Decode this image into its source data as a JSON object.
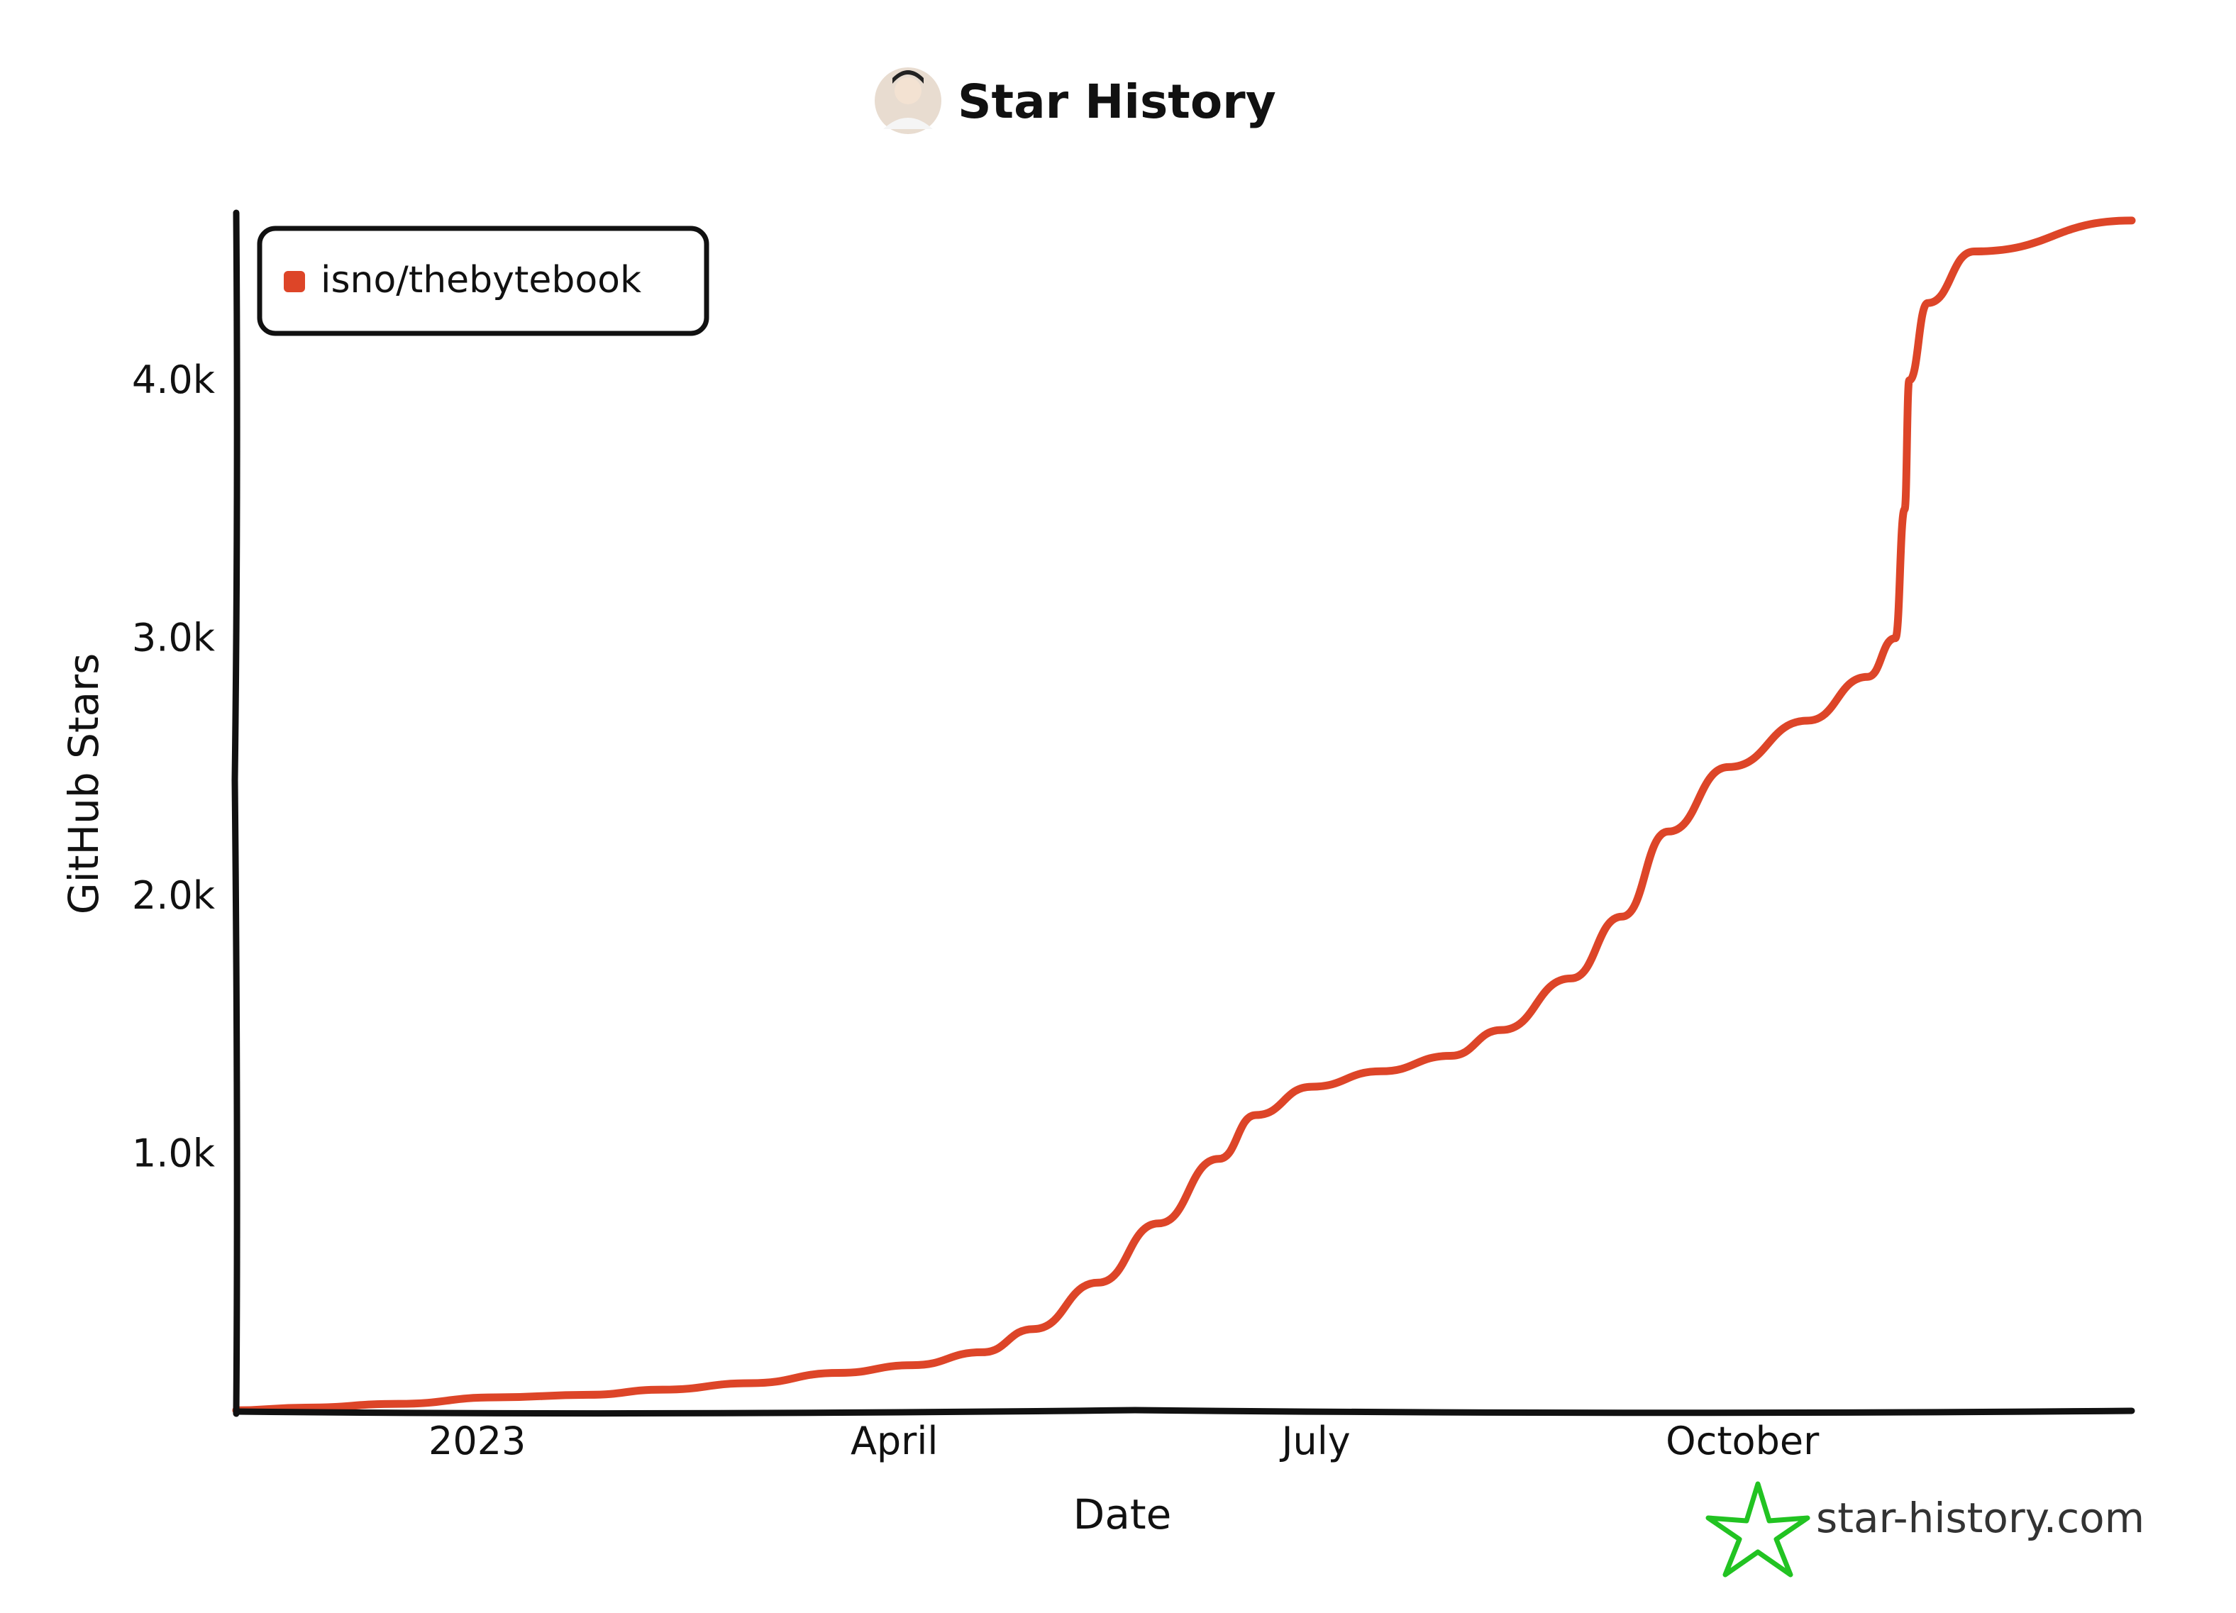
{
  "title": "Star History",
  "avatar_icon": "user-avatar-photo",
  "legend": {
    "entries": [
      "isno/thebytebook"
    ]
  },
  "watermark": {
    "text": "star-history.com",
    "icon": "star-icon",
    "color": "#22c322"
  },
  "colors": {
    "series": "#dd4528",
    "axis": "#111111"
  },
  "chart_data": {
    "type": "line",
    "title": "Star History",
    "xlabel": "Date",
    "ylabel": "GitHub Stars",
    "x_ticks": [
      "2023",
      "April",
      "July",
      "October"
    ],
    "x_tick_dates": [
      "2023-01-01",
      "2023-04-01",
      "2023-07-01",
      "2023-10-01"
    ],
    "y_ticks": [
      "1.0k",
      "2.0k",
      "3.0k",
      "4.0k"
    ],
    "y_tick_values": [
      1000,
      2000,
      3000,
      4000
    ],
    "xlim": [
      "2022-11-10",
      "2023-12-24"
    ],
    "ylim": [
      0,
      4650
    ],
    "grid": false,
    "legend_position": "top-left",
    "series": [
      {
        "name": "isno/thebytebook",
        "color": "#dd4528",
        "points": [
          {
            "date": "2022-11-10",
            "stars": 5
          },
          {
            "date": "2022-11-25",
            "stars": 15
          },
          {
            "date": "2022-12-15",
            "stars": 30
          },
          {
            "date": "2023-01-05",
            "stars": 55
          },
          {
            "date": "2023-01-25",
            "stars": 65
          },
          {
            "date": "2023-02-10",
            "stars": 85
          },
          {
            "date": "2023-03-01",
            "stars": 110
          },
          {
            "date": "2023-03-20",
            "stars": 150
          },
          {
            "date": "2023-04-05",
            "stars": 180
          },
          {
            "date": "2023-04-20",
            "stars": 230
          },
          {
            "date": "2023-05-01",
            "stars": 320
          },
          {
            "date": "2023-05-15",
            "stars": 500
          },
          {
            "date": "2023-05-28",
            "stars": 730
          },
          {
            "date": "2023-06-10",
            "stars": 980
          },
          {
            "date": "2023-06-18",
            "stars": 1150
          },
          {
            "date": "2023-06-30",
            "stars": 1260
          },
          {
            "date": "2023-07-15",
            "stars": 1320
          },
          {
            "date": "2023-07-30",
            "stars": 1380
          },
          {
            "date": "2023-08-10",
            "stars": 1480
          },
          {
            "date": "2023-08-25",
            "stars": 1680
          },
          {
            "date": "2023-09-05",
            "stars": 1920
          },
          {
            "date": "2023-09-15",
            "stars": 2250
          },
          {
            "date": "2023-09-28",
            "stars": 2500
          },
          {
            "date": "2023-10-15",
            "stars": 2680
          },
          {
            "date": "2023-10-28",
            "stars": 2850
          },
          {
            "date": "2023-11-03",
            "stars": 3000
          },
          {
            "date": "2023-11-05",
            "stars": 3500
          },
          {
            "date": "2023-11-06",
            "stars": 4000
          },
          {
            "date": "2023-11-10",
            "stars": 4300
          },
          {
            "date": "2023-11-20",
            "stars": 4500
          },
          {
            "date": "2023-12-24",
            "stars": 4620
          }
        ]
      }
    ]
  }
}
